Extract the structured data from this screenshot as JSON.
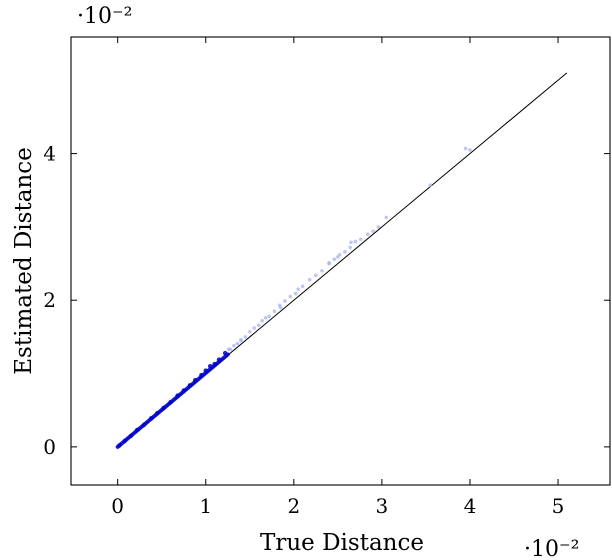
{
  "chart_data": {
    "type": "scatter",
    "title": "",
    "xlabel": "True Distance",
    "ylabel": "Estimated Distance",
    "x_scale_label": "·10⁻²",
    "y_scale_label": "·10⁻²",
    "xlim": [
      -0.0053,
      0.0559
    ],
    "ylim": [
      -0.0052,
      0.0559
    ],
    "x_ticks": [
      0,
      0.01,
      0.02,
      0.03,
      0.04,
      0.05
    ],
    "x_tick_labels": [
      "0",
      "1",
      "2",
      "3",
      "4",
      "5"
    ],
    "y_ticks": [
      0,
      0.02,
      0.04
    ],
    "y_tick_labels": [
      "0",
      "2",
      "4"
    ],
    "grid": false,
    "legend": "none",
    "reference_line": {
      "x": [
        0,
        0.051
      ],
      "y": [
        0,
        0.051
      ],
      "color": "#000000"
    },
    "point_color": "#0000cc",
    "outlier_color": "#aab2ee",
    "dense_segment": {
      "x": [
        0,
        0.0125
      ],
      "y": [
        0,
        0.0126
      ]
    },
    "points": [
      [
        0.0002,
        0.0002
      ],
      [
        0.0008,
        0.0008
      ],
      [
        0.0015,
        0.0015
      ],
      [
        0.0022,
        0.0023
      ],
      [
        0.003,
        0.003
      ],
      [
        0.0038,
        0.0039
      ],
      [
        0.0045,
        0.0046
      ],
      [
        0.0052,
        0.0053
      ],
      [
        0.006,
        0.0061
      ],
      [
        0.0068,
        0.007
      ],
      [
        0.0075,
        0.0077
      ],
      [
        0.0082,
        0.0084
      ],
      [
        0.0088,
        0.0091
      ],
      [
        0.0095,
        0.0098
      ],
      [
        0.01,
        0.0104
      ],
      [
        0.0105,
        0.011
      ],
      [
        0.011,
        0.0113
      ],
      [
        0.0115,
        0.0119
      ],
      [
        0.0122,
        0.0128
      ],
      [
        0.0128,
        0.0133
      ],
      [
        0.0132,
        0.0138
      ],
      [
        0.0136,
        0.0141
      ],
      [
        0.014,
        0.0146
      ],
      [
        0.0145,
        0.015
      ],
      [
        0.015,
        0.0157
      ],
      [
        0.0155,
        0.0162
      ],
      [
        0.016,
        0.0166
      ],
      [
        0.0164,
        0.0172
      ],
      [
        0.0168,
        0.0176
      ],
      [
        0.0172,
        0.0178
      ],
      [
        0.0178,
        0.0185
      ],
      [
        0.0184,
        0.0193
      ],
      [
        0.019,
        0.0199
      ],
      [
        0.0196,
        0.0205
      ],
      [
        0.0202,
        0.0209
      ],
      [
        0.021,
        0.0219
      ],
      [
        0.0218,
        0.0228
      ],
      [
        0.0225,
        0.0234
      ],
      [
        0.0232,
        0.024
      ],
      [
        0.024,
        0.025
      ],
      [
        0.0246,
        0.0256
      ],
      [
        0.0252,
        0.0262
      ],
      [
        0.0258,
        0.0266
      ],
      [
        0.0264,
        0.0272
      ],
      [
        0.027,
        0.028
      ],
      [
        0.0276,
        0.0283
      ],
      [
        0.0284,
        0.029
      ],
      [
        0.029,
        0.0294
      ],
      [
        0.0296,
        0.03
      ],
      [
        0.0305,
        0.0313
      ],
      [
        0.0355,
        0.0357
      ],
      [
        0.0395,
        0.0407
      ],
      [
        0.04,
        0.0405
      ],
      [
        0.025,
        0.0259
      ],
      [
        0.0205,
        0.0215
      ],
      [
        0.0185,
        0.019
      ],
      [
        0.014,
        0.0145
      ],
      [
        0.0126,
        0.0133
      ],
      [
        0.0265,
        0.0279
      ],
      [
        0.024,
        0.0251
      ]
    ]
  }
}
